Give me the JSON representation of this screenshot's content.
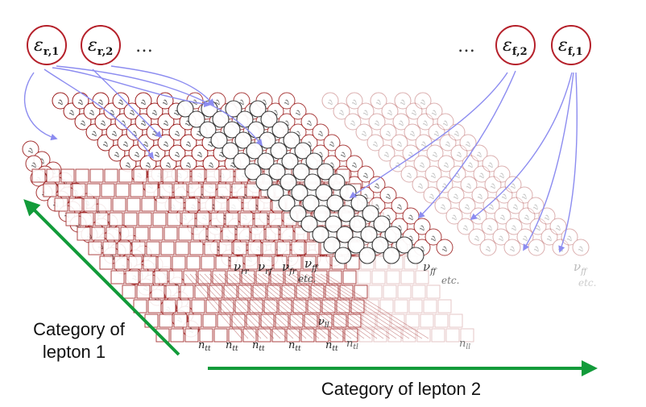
{
  "sources_left": [
    {
      "symbol": "ε",
      "sub": "r,1"
    },
    {
      "symbol": "ε",
      "sub": "r,2"
    }
  ],
  "sources_right": [
    {
      "symbol": "ε",
      "sub": "f,2"
    },
    {
      "symbol": "ε",
      "sub": "f,1"
    }
  ],
  "ellipsis_left": "…",
  "ellipsis_right": "…",
  "node_labels": {
    "nu_symbol": "ν",
    "nu_ll": "ll",
    "nu_rr": "rr",
    "nu_rf": "rf",
    "nu_fr": "fr",
    "nu_ff": "ff",
    "n_symbol": "n",
    "n_tt": "tt",
    "n_tl": "tl",
    "n_ll": "ll",
    "etc": "etc."
  },
  "axis_y_label": [
    "Category of",
    "lepton 1"
  ],
  "axis_x_label": "Category of lepton 2",
  "colors": {
    "source_stroke": "#b5202a",
    "arrow_blue": "#8c8cf0",
    "model_red": "#9b1c1c",
    "model_dark": "#333333",
    "axis_green": "#129b3a"
  }
}
